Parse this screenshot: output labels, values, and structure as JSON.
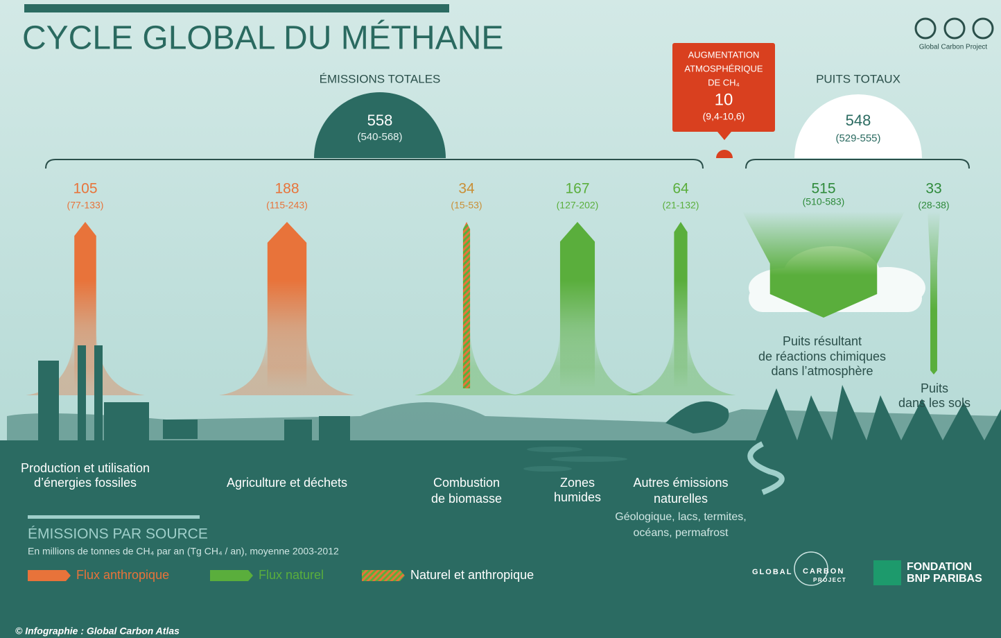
{
  "header": {
    "title": "CYCLE GLOBAL DU MÉTHANE"
  },
  "credit": {
    "license": "Global Carbon Project"
  },
  "totals": {
    "emissions": {
      "label": "ÉMISSIONS TOTALES",
      "value": 558,
      "range": "(540-568)"
    },
    "increase": {
      "label": [
        "AUGMENTATION",
        "ATMOSPHÉRIQUE",
        "DE CH₄"
      ],
      "value": 10,
      "range": "(9,4-10,6)"
    },
    "sinks": {
      "label": "PUITS TOTAUX",
      "value": 548,
      "range": "(529-555)"
    }
  },
  "sources": [
    {
      "value": 105,
      "range": "(77-133)",
      "color": "#e8733a",
      "hatched": false,
      "label": [
        "Production et utilisation",
        "d’énergies fossiles"
      ]
    },
    {
      "value": 188,
      "range": "(115-243)",
      "color": "#e8733a",
      "hatched": false,
      "label": [
        "Agriculture et déchets"
      ]
    },
    {
      "value": 34,
      "range": "(15-53)",
      "color": "#c98f36",
      "hatched": true,
      "label": [
        "Combustion",
        "de biomasse"
      ]
    },
    {
      "value": 167,
      "range": "(127-202)",
      "color": "#5aae3c",
      "hatched": false,
      "label": [
        "Zones",
        "humides"
      ]
    },
    {
      "value": 64,
      "range": "(21-132)",
      "color": "#5aae3c",
      "hatched": false,
      "label": [
        "Autres émissions",
        "naturelles"
      ],
      "details": [
        "Géologique, lacs, termites,",
        "océans, permafrost"
      ]
    }
  ],
  "sinks": [
    {
      "value": 515,
      "range": "(510-583)",
      "color": "#5aae3c",
      "label": [
        "Puits résultant",
        "de réactions chimiques",
        "dans l’atmosphère"
      ]
    },
    {
      "value": 33,
      "range": "(28-38)",
      "color": "#5aae3c",
      "label": [
        "Puits",
        "dans les sols"
      ]
    }
  ],
  "legend": {
    "title": "ÉMISSIONS PAR SOURCE",
    "subtitle": "En millions de tonnes de CH₄ par an (Tg CH₄ / an), moyenne 2003-2012",
    "items": [
      {
        "label": "Flux anthropique",
        "color": "#e8733a",
        "hatched": false
      },
      {
        "label": "Flux naturel",
        "color": "#5aae3c",
        "hatched": false
      },
      {
        "label": "Naturel et anthropique",
        "color": "#c98f36",
        "hatched": true
      }
    ]
  },
  "logos": {
    "gcp": [
      "GLOBAL",
      "CARBON",
      "PROJECT"
    ],
    "bnp": [
      "FONDATION",
      "BNP PARIBAS"
    ]
  },
  "caption": "© Infographie : Global Carbon Atlas"
}
